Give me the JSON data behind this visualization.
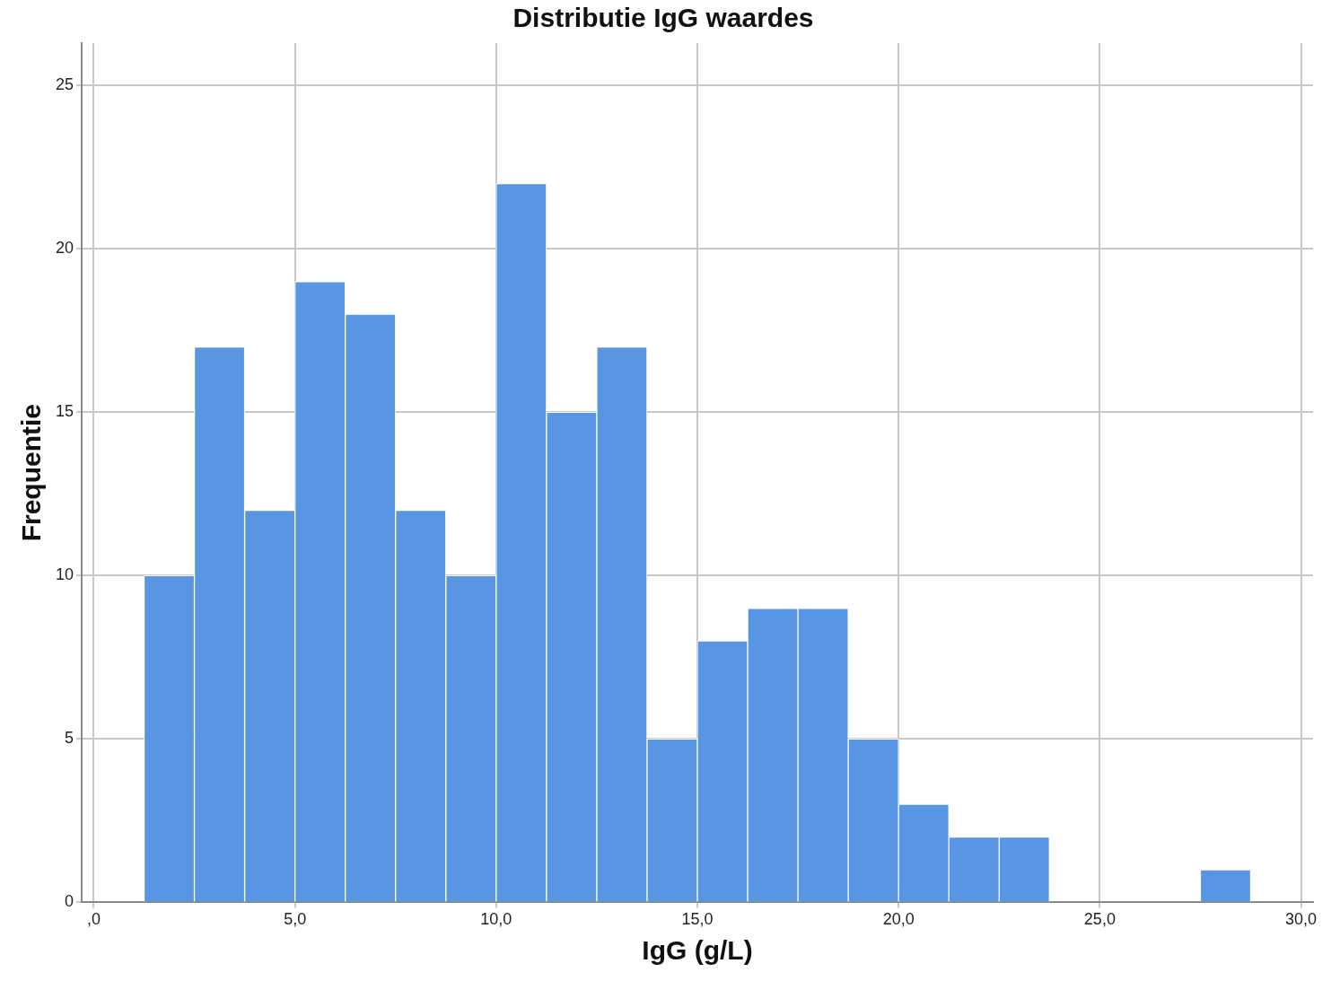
{
  "chart_data": {
    "type": "histogram",
    "title": "Distributie IgG waardes",
    "xlabel": "IgG (g/L)",
    "ylabel": "Frequentie",
    "bins": [
      1.25,
      2.5,
      3.75,
      5,
      6.25,
      7.5,
      8.75,
      10,
      11.25,
      12.5,
      13.75,
      15,
      16.25,
      17.5,
      18.75,
      20,
      21.25,
      22.5,
      23.75,
      25,
      26.25,
      27.5,
      28.75
    ],
    "values": [
      10,
      17,
      12,
      19,
      18,
      12,
      10,
      22,
      15,
      17,
      5,
      8,
      9,
      9,
      5,
      3,
      2,
      2,
      0,
      0,
      0,
      1
    ],
    "color": "#5896e3",
    "xlim": [
      -0.3,
      30.3
    ],
    "xticks": [
      {
        "value": 0,
        "label": ",0"
      },
      {
        "value": 5,
        "label": "5,0"
      },
      {
        "value": 10,
        "label": "10,0"
      },
      {
        "value": 15,
        "label": "15,0"
      },
      {
        "value": 20,
        "label": "20,0"
      },
      {
        "value": 25,
        "label": "25,0"
      },
      {
        "value": 30,
        "label": "30,0"
      }
    ],
    "ylim": [
      0,
      26.3
    ],
    "yticks": [
      0,
      5,
      10,
      15,
      20,
      25
    ],
    "grid": true
  }
}
